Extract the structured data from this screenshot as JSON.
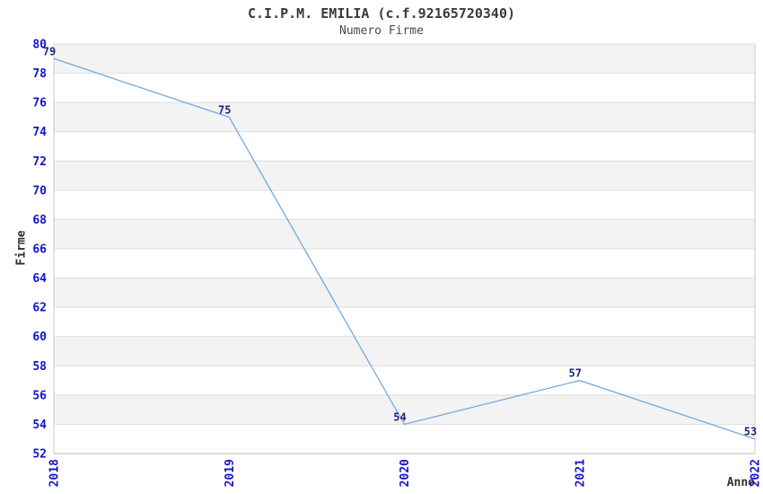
{
  "header": {
    "title": "C.I.P.M. EMILIA (c.f.92165720340)",
    "subtitle": "Numero Firme"
  },
  "chart_data": {
    "type": "line",
    "title": "C.I.P.M. EMILIA (c.f.92165720340)",
    "subtitle": "Numero Firme",
    "xlabel": "Anno",
    "ylabel": "Firme",
    "categories": [
      "2018",
      "2019",
      "2020",
      "2021",
      "2022"
    ],
    "series": [
      {
        "name": "Numero Firme",
        "values": [
          79,
          75,
          54,
          57,
          53
        ]
      }
    ],
    "ylim": [
      52,
      80
    ],
    "ytick_step": 2,
    "yticks": [
      52,
      54,
      56,
      58,
      60,
      62,
      64,
      66,
      68,
      70,
      72,
      74,
      76,
      78,
      80
    ],
    "grid": true,
    "alternating_bands": true,
    "legend_position": "none",
    "colors": {
      "line": "#74a9dc",
      "band": "#f3f3f3",
      "gridline": "#dedede",
      "frame": "#c8c8c8",
      "tick_label": "#1414cc",
      "data_label": "#22227a",
      "text": "#303030",
      "background": "#ffffff"
    }
  }
}
